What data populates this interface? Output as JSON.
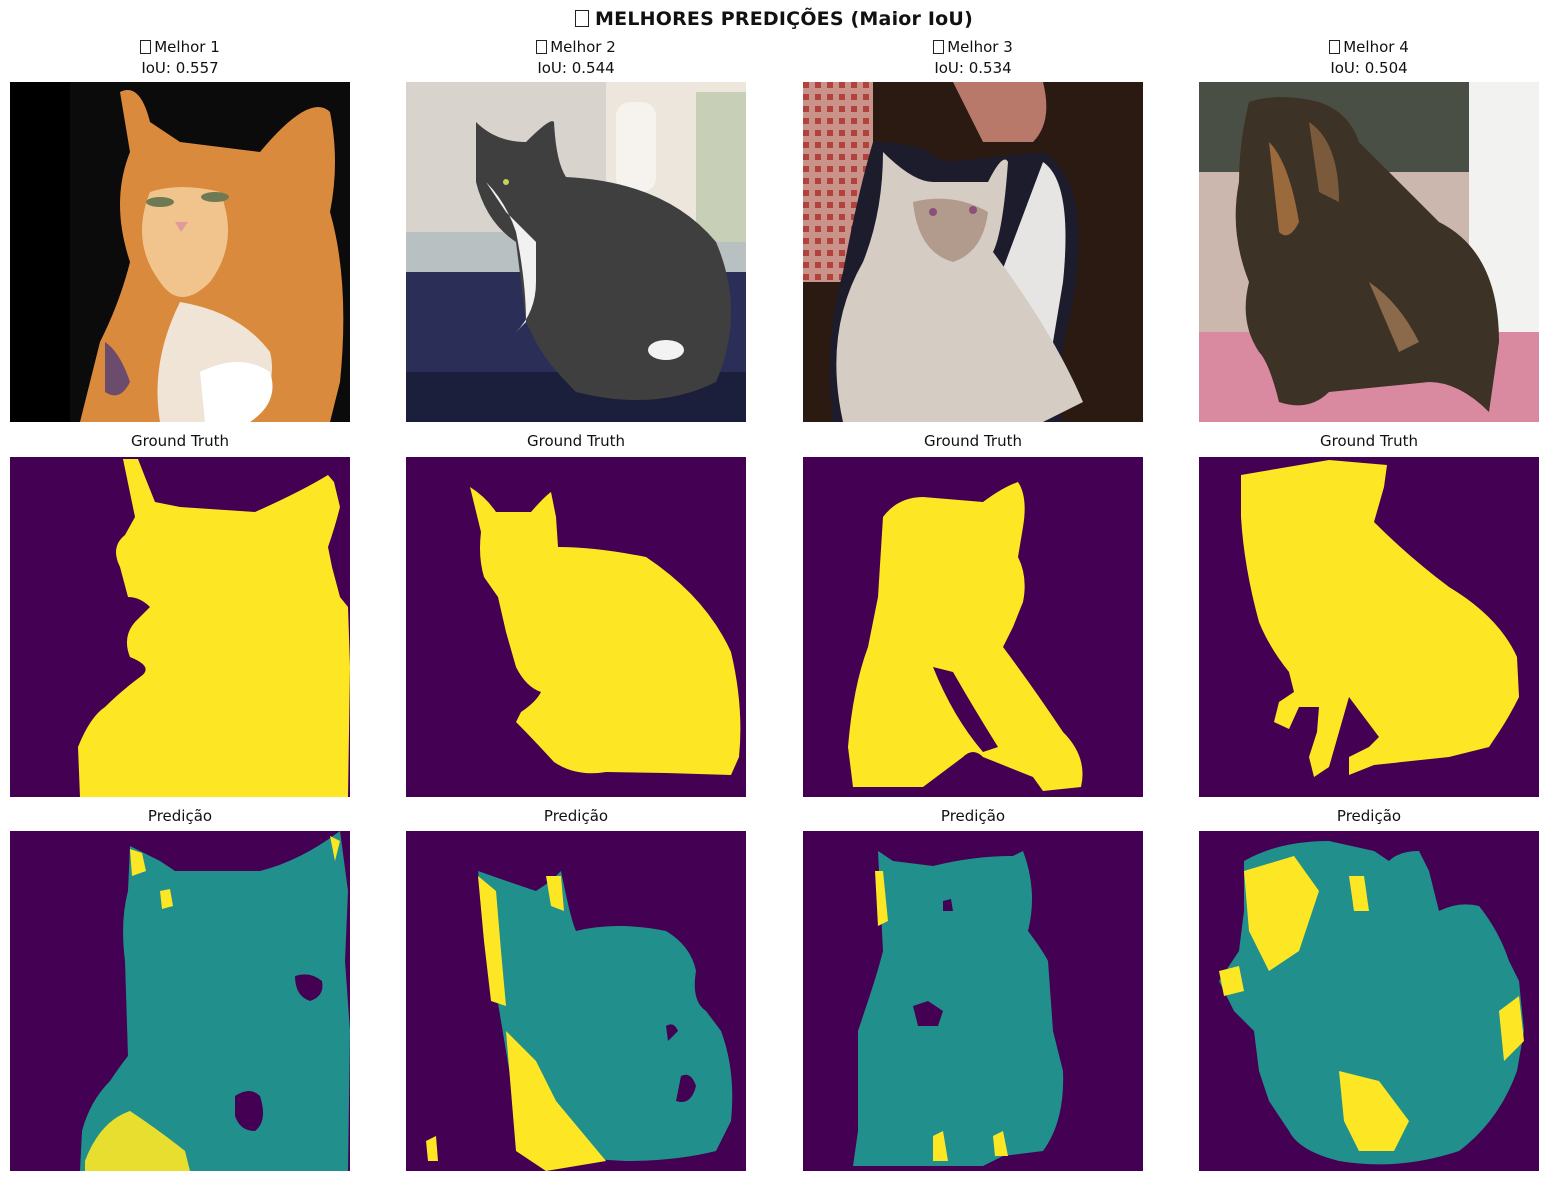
{
  "figure": {
    "title": "MELHORES PREDIÇÕES (Maior IoU)",
    "title_glyph": "missing-glyph-box"
  },
  "columns": [
    {
      "label": "Melhor 1",
      "iou": "IoU: 0.557",
      "gt_title": "Ground Truth",
      "pred_title": "Predição"
    },
    {
      "label": "Melhor 2",
      "iou": "IoU: 0.544",
      "gt_title": "Ground Truth",
      "pred_title": "Predição"
    },
    {
      "label": "Melhor 3",
      "iou": "IoU: 0.534",
      "gt_title": "Ground Truth",
      "pred_title": "Predição"
    },
    {
      "label": "Melhor 4",
      "iou": "IoU: 0.504",
      "gt_title": "Ground Truth",
      "pred_title": "Predição"
    }
  ],
  "colors": {
    "background_class": "#440154",
    "mid_class": "#21908d",
    "foreground_class": "#fde725"
  }
}
